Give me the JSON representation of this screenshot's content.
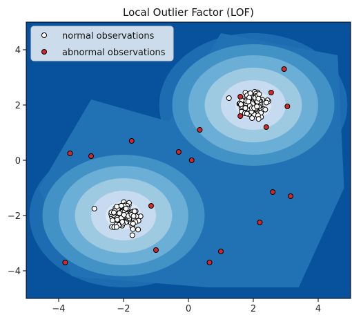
{
  "chart_data": {
    "type": "scatter",
    "title": "Local Outlier Factor (LOF)",
    "xlabel": "",
    "ylabel": "",
    "xlim": [
      -5,
      5
    ],
    "ylim": [
      -5,
      5
    ],
    "xticks": [
      -4,
      -2,
      0,
      2,
      4
    ],
    "yticks": [
      -4,
      -2,
      0,
      2,
      4
    ],
    "xtick_labels": [
      "−4",
      "−2",
      "0",
      "2",
      "4"
    ],
    "ytick_labels": [
      "−4",
      "−2",
      "0",
      "2",
      "4"
    ],
    "grid": false,
    "legend_position": "top-left",
    "background": "filled contour of outlier score (Blues colormap), lightest around the two clusters",
    "colors": {
      "normal_fill": "#ffffff",
      "abnormal_fill": "#d62728",
      "marker_edge": "#000000",
      "contour_levels": [
        "#08519c",
        "#2171b5",
        "#4292c6",
        "#6baed6",
        "#9ecae1",
        "#c6dbef",
        "#deebf7"
      ]
    },
    "series": [
      {
        "name": "normal observations",
        "marker": "circle-white",
        "clusters": [
          {
            "center": [
              -2.0,
              -2.0
            ],
            "spread": 0.28,
            "count": 100
          },
          {
            "center": [
              2.0,
              2.0
            ],
            "spread": 0.28,
            "count": 100
          }
        ],
        "points": [
          [
            1.25,
            2.25
          ],
          [
            -2.9,
            -1.75
          ]
        ]
      },
      {
        "name": "abnormal observations",
        "marker": "circle-red",
        "points": [
          [
            2.95,
            3.3
          ],
          [
            2.55,
            2.45
          ],
          [
            1.6,
            2.3
          ],
          [
            3.05,
            1.95
          ],
          [
            1.6,
            1.6
          ],
          [
            2.4,
            1.2
          ],
          [
            0.35,
            1.1
          ],
          [
            -1.75,
            0.7
          ],
          [
            -3.65,
            0.25
          ],
          [
            -3.0,
            0.15
          ],
          [
            -0.3,
            0.3
          ],
          [
            0.1,
            0.0
          ],
          [
            -1.15,
            -1.65
          ],
          [
            2.6,
            -1.15
          ],
          [
            3.15,
            -1.3
          ],
          [
            2.2,
            -2.25
          ],
          [
            -1.0,
            -3.25
          ],
          [
            1.0,
            -3.3
          ],
          [
            0.65,
            -3.7
          ],
          [
            -3.8,
            -3.7
          ]
        ]
      }
    ]
  }
}
